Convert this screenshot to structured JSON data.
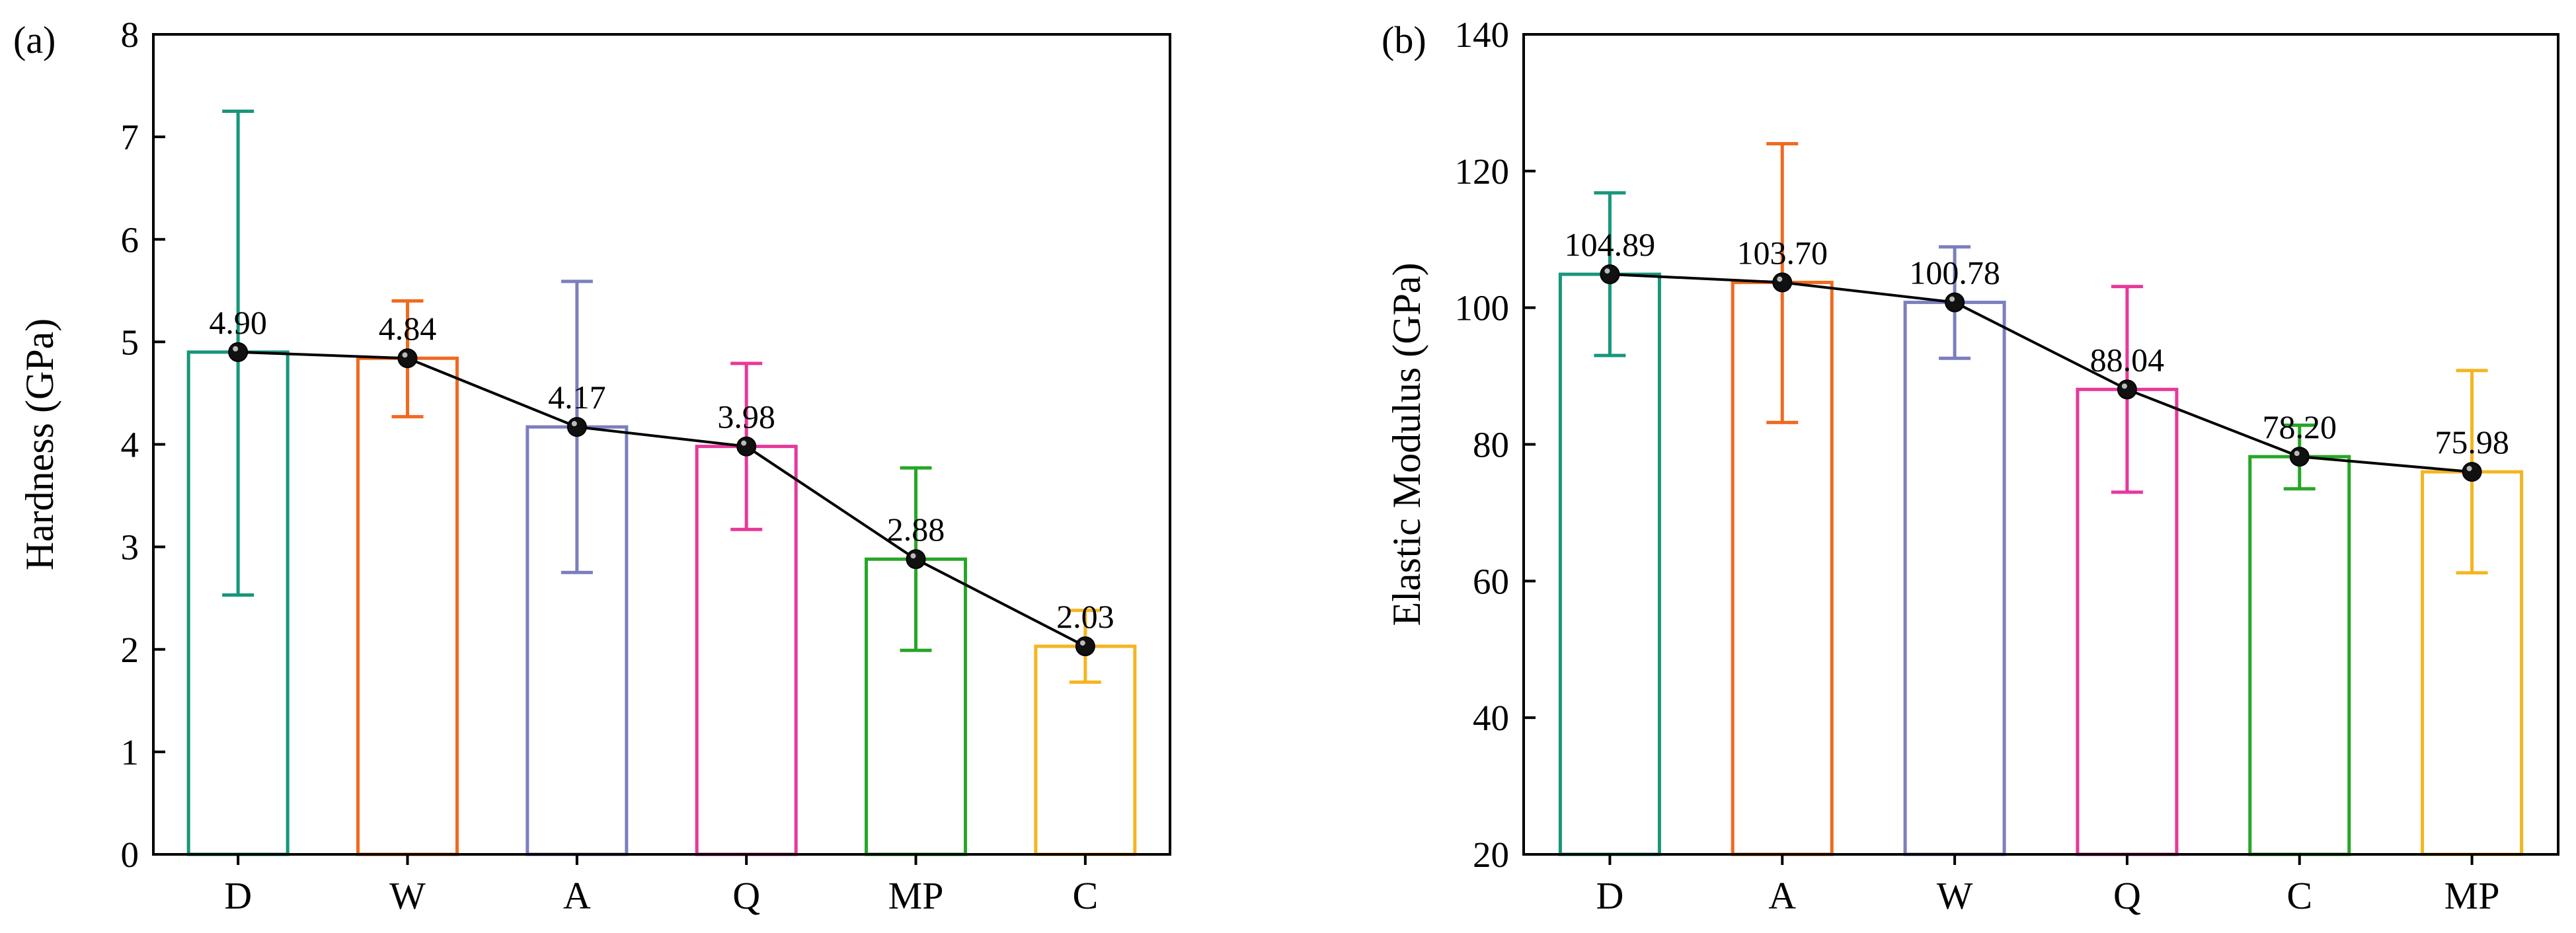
{
  "chart_data": [
    {
      "type": "bar",
      "panel_label": "(a)",
      "title": "",
      "xlabel": "",
      "ylabel": "Hardness (GPa)",
      "ylim": [
        0,
        8
      ],
      "yticks": [
        0,
        1,
        2,
        3,
        4,
        5,
        6,
        7,
        8
      ],
      "categories": [
        "D",
        "W",
        "A",
        "Q",
        "MP",
        "C"
      ],
      "values": [
        4.9,
        4.84,
        4.17,
        3.98,
        2.88,
        2.03
      ],
      "value_labels": [
        "4.90",
        "4.84",
        "4.17",
        "3.98",
        "2.88",
        "2.03"
      ],
      "error_low": [
        2.53,
        4.27,
        2.75,
        3.17,
        1.99,
        1.68
      ],
      "error_high": [
        7.25,
        5.4,
        5.59,
        4.79,
        3.77,
        2.38
      ],
      "colors": [
        "#17967a",
        "#ef6a20",
        "#7b7fbe",
        "#e8389a",
        "#26a626",
        "#f4b521"
      ],
      "connecting_line": true
    },
    {
      "type": "bar",
      "panel_label": "(b)",
      "title": "",
      "xlabel": "",
      "ylabel": "Elastic Modulus (GPa)",
      "ylim": [
        20,
        140
      ],
      "yticks": [
        20,
        40,
        60,
        80,
        100,
        120,
        140
      ],
      "categories": [
        "D",
        "A",
        "W",
        "Q",
        "C",
        "MP"
      ],
      "values": [
        104.89,
        103.7,
        100.78,
        88.04,
        78.2,
        75.98
      ],
      "value_labels": [
        "104.89",
        "103.70",
        "100.78",
        "88.04",
        "78.20",
        "75.98"
      ],
      "error_low": [
        93.0,
        83.2,
        92.6,
        73.0,
        73.5,
        61.2
      ],
      "error_high": [
        116.8,
        124.0,
        108.9,
        103.1,
        82.8,
        90.8
      ],
      "colors": [
        "#17967a",
        "#ef6a20",
        "#7b7fbe",
        "#e8389a",
        "#26a626",
        "#f4b521"
      ],
      "connecting_line": true
    }
  ]
}
